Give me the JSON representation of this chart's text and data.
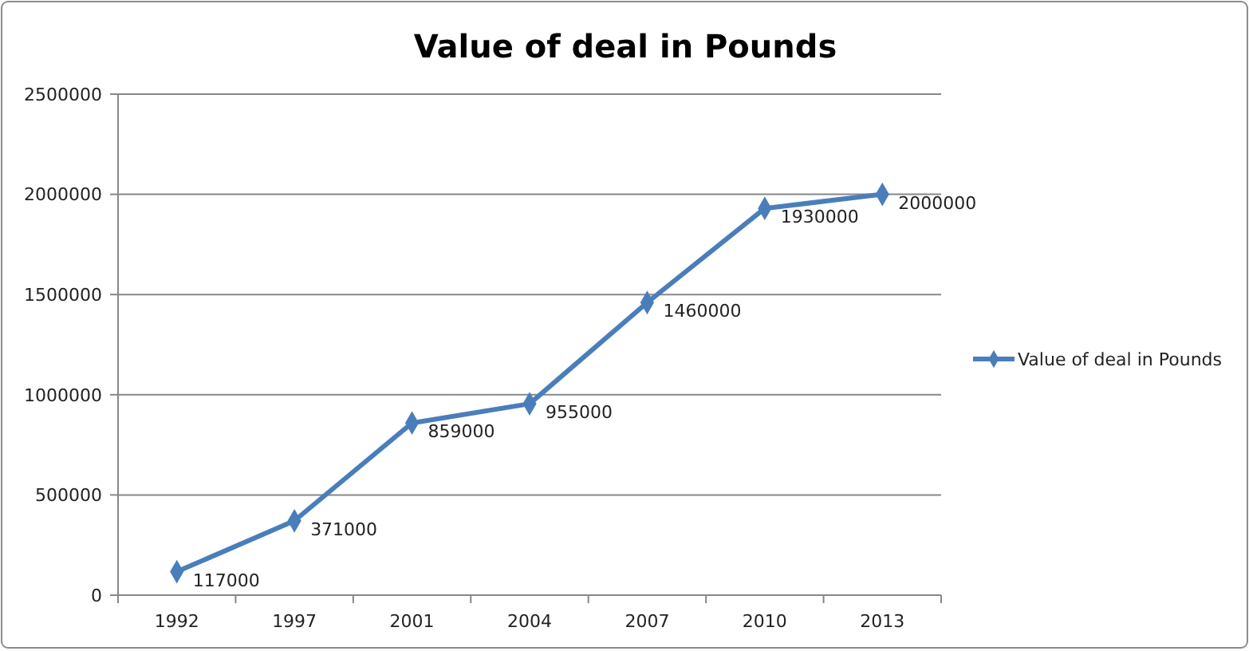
{
  "chart_data": {
    "type": "line",
    "title": "Value of deal in Pounds",
    "categories": [
      "1992",
      "1997",
      "2001",
      "2004",
      "2007",
      "2010",
      "2013"
    ],
    "series": [
      {
        "name": "Value of deal in Pounds",
        "color": "#4a7ebb",
        "values": [
          117000,
          371000,
          859000,
          955000,
          1460000,
          1930000,
          2000000
        ]
      }
    ],
    "ylim": [
      0,
      2500000
    ],
    "yticks": [
      0,
      500000,
      1000000,
      1500000,
      2000000,
      2500000
    ],
    "grid": "y",
    "legend": "right",
    "marker": "diamond",
    "line_style": "solid",
    "data_labels": true
  }
}
